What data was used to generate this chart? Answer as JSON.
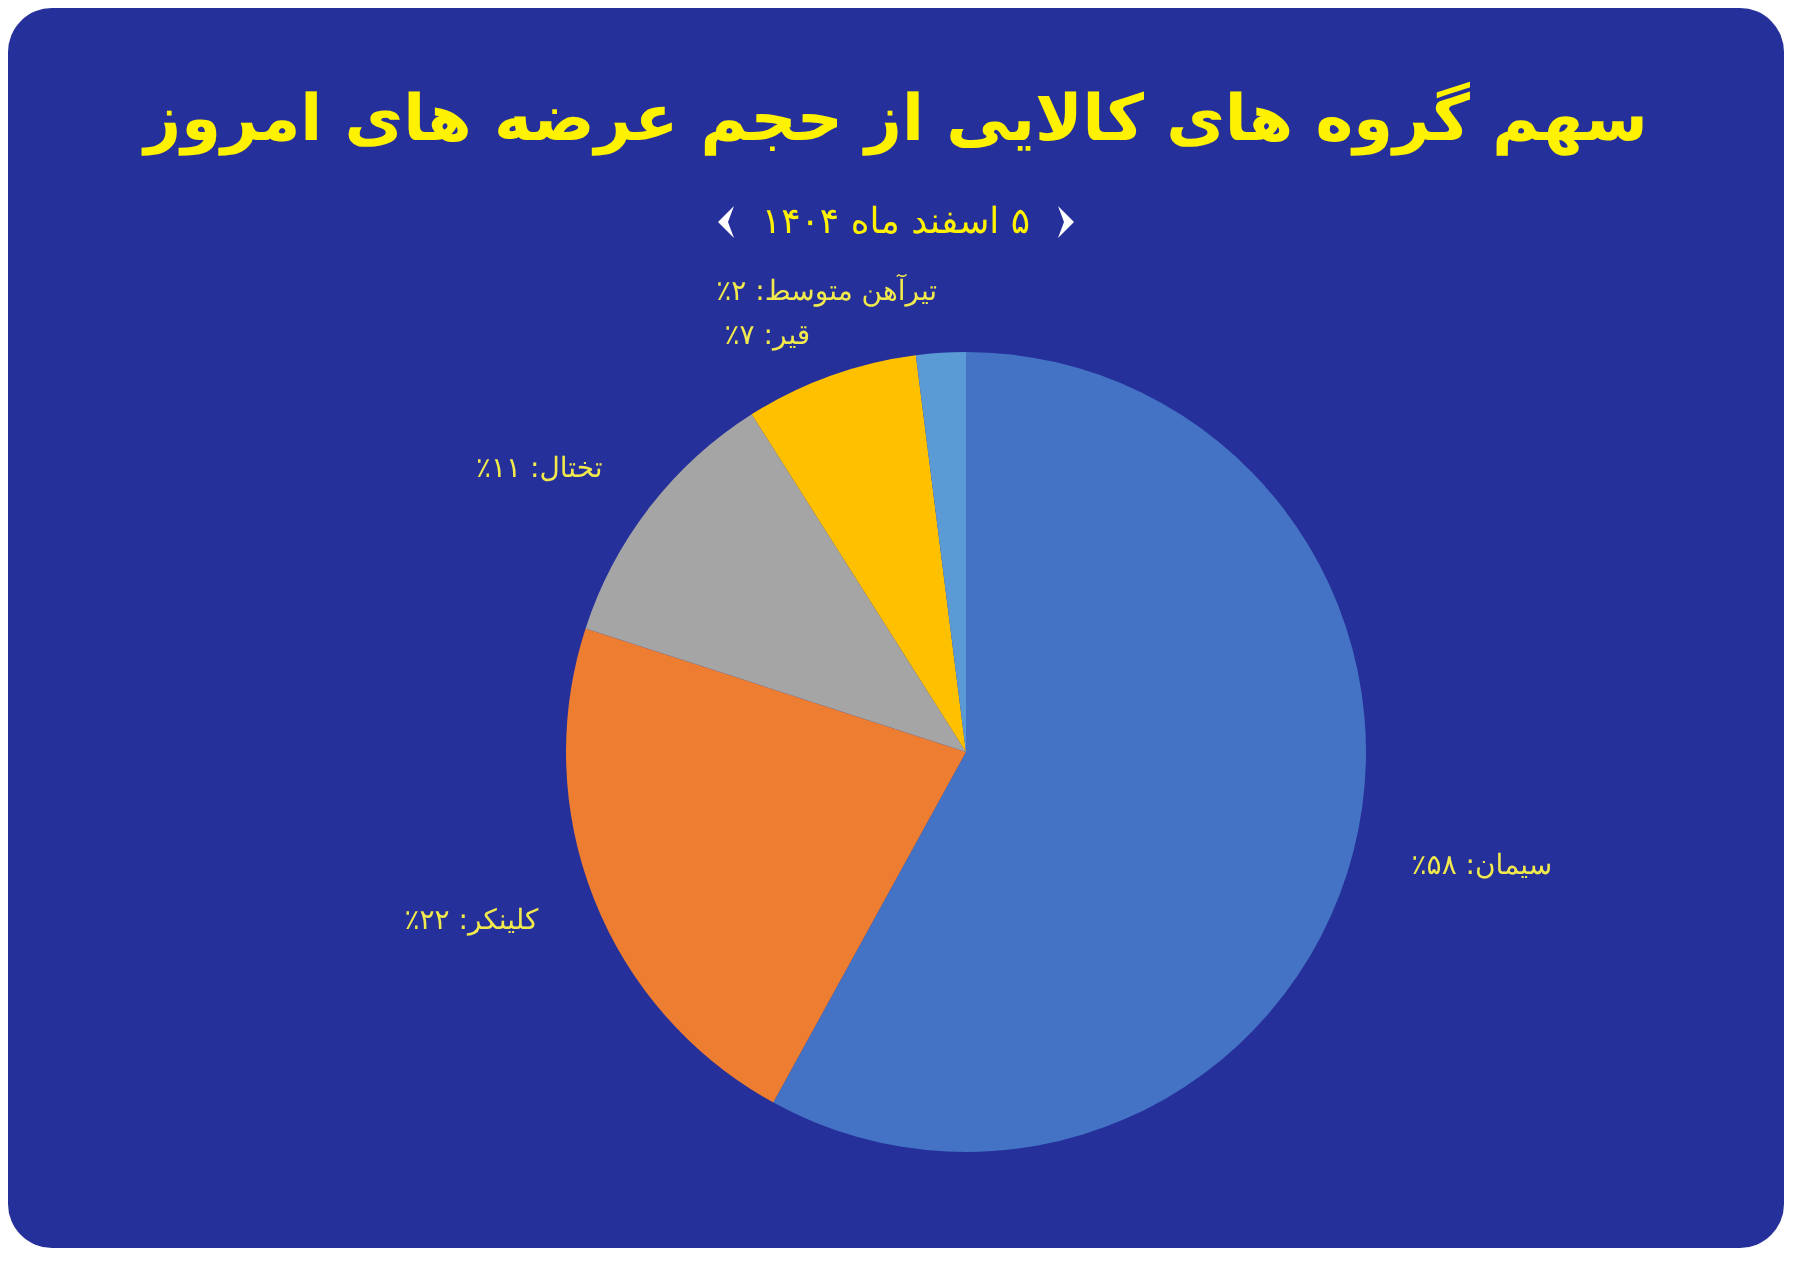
{
  "chart_data": {
    "type": "pie",
    "title": "سهم گروه های کالایی از حجم عرضه های امروز",
    "subtitle": "۵ اسفند ماه ۱۴۰۴",
    "categories": [
      "سیمان",
      "کلینکر",
      "تختال",
      "قیر",
      "تیرآهن متوسط"
    ],
    "values": [
      58,
      22,
      11,
      7,
      2
    ],
    "colors": [
      "#4472c4",
      "#ed7d31",
      "#a5a5a5",
      "#ffc000",
      "#5b9bd5"
    ],
    "value_labels": [
      "۵۸٪",
      "۲۲٪",
      "۱۱٪",
      "۷٪",
      "۲٪"
    ],
    "legend": false
  }
}
